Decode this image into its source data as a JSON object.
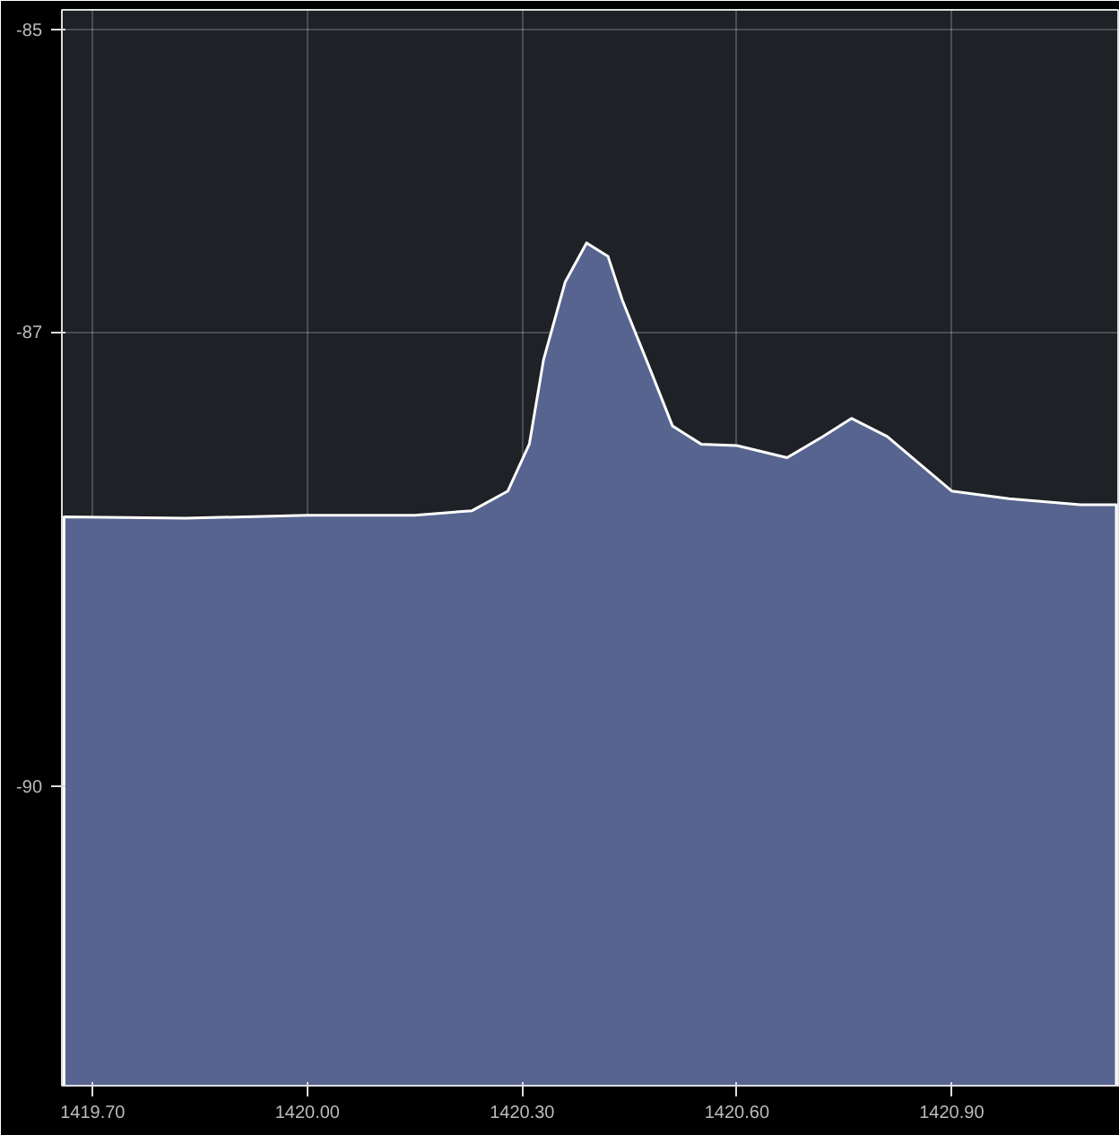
{
  "chart_data": {
    "type": "area",
    "x": [
      1419.66,
      1419.83,
      1420.0,
      1420.15,
      1420.23,
      1420.28,
      1420.31,
      1420.33,
      1420.36,
      1420.39,
      1420.42,
      1420.44,
      1420.48,
      1420.51,
      1420.55,
      1420.6,
      1420.67,
      1420.72,
      1420.76,
      1420.81,
      1420.86,
      1420.9,
      1420.98,
      1421.08,
      1421.13
    ],
    "series": [
      {
        "color": "#56648f",
        "values": [
          -88.22,
          -88.23,
          -88.21,
          -88.21,
          -88.18,
          -88.05,
          -87.74,
          -87.18,
          -86.67,
          -86.41,
          -86.5,
          -86.79,
          -87.26,
          -87.62,
          -87.74,
          -87.75,
          -87.83,
          -87.69,
          -87.57,
          -87.69,
          -87.89,
          -88.05,
          -88.1,
          -88.14,
          -88.14
        ]
      }
    ],
    "xlim": [
      1419.657,
      1421.135
    ],
    "ylim": [
      -91.98,
      -84.87
    ],
    "xticks": [
      {
        "value": 1419.7,
        "label": "1419.70"
      },
      {
        "value": 1420.0,
        "label": "1420.00"
      },
      {
        "value": 1420.3,
        "label": "1420.30"
      },
      {
        "value": 1420.6,
        "label": "1420.60"
      },
      {
        "value": 1420.9,
        "label": "1420.90"
      }
    ],
    "yticks": [
      -85,
      -87,
      -90
    ],
    "grid": true
  }
}
